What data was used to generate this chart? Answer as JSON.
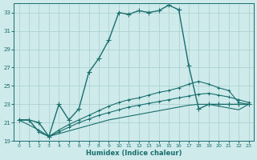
{
  "xlabel": "Humidex (Indice chaleur)",
  "bg_color": "#ceeaea",
  "grid_color": "#a8cccc",
  "line_color": "#1a6e6e",
  "xlim": [
    -0.5,
    23.5
  ],
  "ylim": [
    19,
    34
  ],
  "xticks": [
    0,
    1,
    2,
    3,
    4,
    5,
    6,
    7,
    8,
    9,
    10,
    11,
    12,
    13,
    14,
    15,
    16,
    17,
    18,
    19,
    20,
    21,
    22,
    23
  ],
  "yticks": [
    19,
    21,
    23,
    25,
    27,
    29,
    31,
    33
  ],
  "line1_x": [
    0,
    1,
    2,
    3,
    4,
    5,
    6,
    7,
    8,
    9,
    10,
    11,
    12,
    13,
    14,
    15,
    16,
    17,
    18,
    19,
    20,
    21,
    22,
    23
  ],
  "line1_y": [
    21.3,
    21.3,
    21.0,
    19.5,
    23.0,
    21.3,
    22.5,
    26.5,
    28.0,
    30.0,
    33.0,
    32.8,
    33.2,
    33.0,
    33.2,
    33.8,
    33.3,
    27.2,
    22.5,
    23.0,
    23.0,
    23.0,
    23.0,
    23.0
  ],
  "line2_x": [
    0,
    1,
    2,
    3,
    4,
    5,
    6,
    7,
    8,
    9,
    10,
    11,
    12,
    13,
    14,
    15,
    16,
    17,
    18,
    19,
    20,
    21,
    22,
    23
  ],
  "line2_y": [
    21.3,
    21.3,
    20.0,
    19.5,
    20.2,
    20.8,
    21.3,
    21.8,
    22.3,
    22.8,
    23.2,
    23.5,
    23.7,
    24.0,
    24.3,
    24.5,
    24.8,
    25.2,
    25.5,
    25.2,
    24.8,
    24.5,
    23.2,
    23.0
  ],
  "line3_x": [
    0,
    2,
    3,
    4,
    5,
    6,
    7,
    8,
    9,
    10,
    11,
    12,
    13,
    14,
    15,
    16,
    17,
    18,
    19,
    20,
    21,
    22,
    23
  ],
  "line3_y": [
    21.3,
    20.2,
    19.5,
    20.0,
    20.5,
    21.0,
    21.4,
    21.8,
    22.1,
    22.4,
    22.7,
    22.9,
    23.1,
    23.3,
    23.5,
    23.7,
    23.9,
    24.1,
    24.2,
    24.0,
    23.8,
    23.5,
    23.2
  ],
  "line4_x": [
    0,
    1,
    2,
    3,
    4,
    5,
    6,
    7,
    8,
    9,
    10,
    11,
    12,
    13,
    14,
    15,
    16,
    17,
    18,
    19,
    20,
    21,
    22,
    23
  ],
  "line4_y": [
    21.3,
    21.3,
    20.0,
    19.5,
    19.8,
    20.1,
    20.4,
    20.7,
    21.0,
    21.3,
    21.5,
    21.7,
    21.9,
    22.1,
    22.3,
    22.5,
    22.7,
    22.9,
    23.0,
    23.0,
    22.8,
    22.6,
    22.4,
    23.0
  ]
}
